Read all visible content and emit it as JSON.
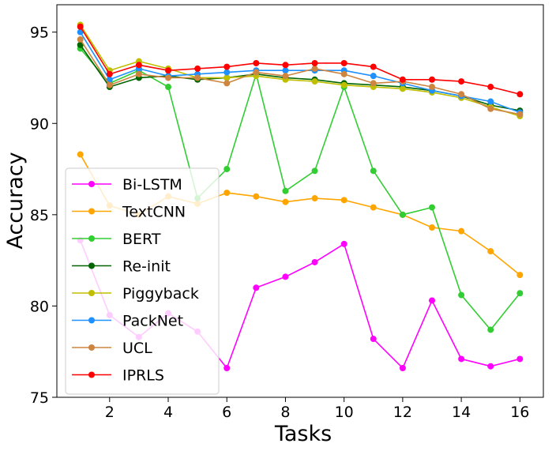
{
  "chart_data": {
    "type": "line",
    "title": "",
    "xlabel": "Tasks",
    "ylabel": "Accuracy",
    "xlim": [
      0.2,
      16.8
    ],
    "ylim": [
      75,
      96.5
    ],
    "xticks": [
      2,
      4,
      6,
      8,
      10,
      12,
      14,
      16
    ],
    "yticks": [
      75,
      80,
      85,
      90,
      95
    ],
    "grid": false,
    "legend_position": "lower-left",
    "x": [
      1,
      2,
      3,
      4,
      5,
      6,
      7,
      8,
      9,
      10,
      11,
      12,
      13,
      14,
      15,
      16
    ],
    "series": [
      {
        "name": "Bi-LSTM",
        "color": "#ff00ff",
        "values": [
          83.6,
          79.5,
          78.3,
          79.6,
          78.6,
          76.6,
          81.0,
          81.6,
          82.4,
          83.4,
          78.2,
          76.6,
          80.3,
          77.1,
          76.7,
          77.1
        ]
      },
      {
        "name": "TextCNN",
        "color": "#ffa500",
        "values": [
          88.3,
          85.5,
          85.0,
          86.0,
          85.6,
          86.2,
          86.0,
          85.7,
          85.9,
          85.8,
          85.4,
          85.0,
          84.3,
          84.1,
          83.0,
          81.7
        ]
      },
      {
        "name": "BERT",
        "color": "#32cd32",
        "values": [
          94.1,
          92.2,
          92.9,
          92.0,
          85.9,
          87.5,
          92.7,
          86.3,
          87.4,
          92.0,
          87.4,
          85.0,
          85.4,
          80.6,
          78.7,
          80.7
        ]
      },
      {
        "name": "Re-init",
        "color": "#006400",
        "values": [
          94.3,
          92.0,
          92.5,
          92.6,
          92.4,
          92.5,
          92.7,
          92.5,
          92.4,
          92.2,
          92.1,
          92.0,
          91.8,
          91.5,
          91.0,
          90.7
        ]
      },
      {
        "name": "Piggyback",
        "color": "#bfbf00",
        "values": [
          95.4,
          92.9,
          93.4,
          93.0,
          92.5,
          92.5,
          92.6,
          92.4,
          92.3,
          92.1,
          92.0,
          91.9,
          91.7,
          91.4,
          90.9,
          90.4
        ]
      },
      {
        "name": "PackNet",
        "color": "#1e90ff",
        "values": [
          95.0,
          92.4,
          93.0,
          92.6,
          92.7,
          92.8,
          92.9,
          92.9,
          92.9,
          92.9,
          92.6,
          92.2,
          91.8,
          91.5,
          91.2,
          90.6
        ]
      },
      {
        "name": "UCL",
        "color": "#cd853f",
        "values": [
          94.6,
          92.1,
          92.7,
          92.5,
          92.5,
          92.2,
          92.8,
          92.6,
          93.0,
          92.7,
          92.2,
          92.3,
          92.0,
          91.6,
          90.8,
          90.5
        ]
      },
      {
        "name": "IPRLS",
        "color": "#ff0000",
        "values": [
          95.3,
          92.7,
          93.2,
          92.9,
          93.0,
          93.1,
          93.3,
          93.2,
          93.3,
          93.3,
          93.1,
          92.4,
          92.4,
          92.3,
          92.0,
          91.6
        ]
      }
    ]
  }
}
